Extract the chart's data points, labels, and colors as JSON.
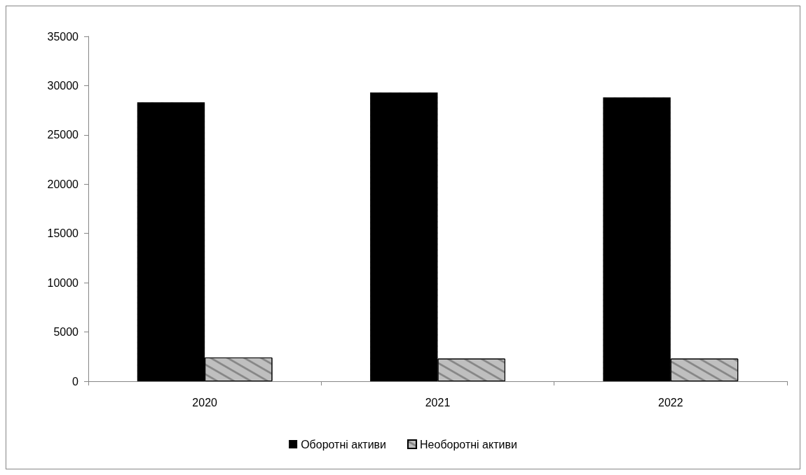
{
  "chart_data": {
    "type": "bar",
    "categories": [
      "2020",
      "2021",
      "2022"
    ],
    "series": [
      {
        "name": "Оборотні активи",
        "color": "#000000",
        "values": [
          28300,
          29300,
          28800
        ]
      },
      {
        "name": "Необоротні активи",
        "color": "#bfbfbf",
        "values": [
          2410,
          2300,
          2300
        ]
      }
    ],
    "ylim": [
      0,
      35000
    ],
    "yticks": [
      0,
      5000,
      10000,
      15000,
      20000,
      25000,
      30000,
      35000
    ],
    "grid": false,
    "legend": "bottom"
  }
}
